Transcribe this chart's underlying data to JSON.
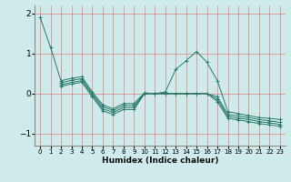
{
  "background_color": "#ceeaea",
  "grid_color": "#e08080",
  "line_color": "#2a7a6a",
  "xlabel": "Humidex (Indice chaleur)",
  "ylim": [
    -1.3,
    2.2
  ],
  "xlim": [
    -0.5,
    23.5
  ],
  "yticks": [
    -1,
    0,
    1,
    2
  ],
  "xticks": [
    0,
    1,
    2,
    3,
    4,
    5,
    6,
    7,
    8,
    9,
    10,
    11,
    12,
    13,
    14,
    15,
    16,
    17,
    18,
    19,
    20,
    21,
    22,
    23
  ],
  "series": [
    [
      1.9,
      1.15,
      0.32,
      0.38,
      0.42,
      0.04,
      -0.28,
      -0.38,
      -0.25,
      -0.25,
      0.02,
      0.0,
      0.04,
      0.6,
      0.82,
      1.05,
      0.78,
      0.32,
      -0.45,
      -0.5,
      -0.55,
      -0.6,
      -0.62,
      -0.65
    ],
    [
      null,
      null,
      0.27,
      0.33,
      0.37,
      0.0,
      -0.33,
      -0.42,
      -0.3,
      -0.3,
      0.0,
      0.0,
      0.0,
      0.0,
      0.0,
      0.0,
      0.0,
      -0.08,
      -0.52,
      -0.56,
      -0.6,
      -0.65,
      -0.68,
      -0.72
    ],
    [
      null,
      null,
      0.22,
      0.28,
      0.32,
      -0.04,
      -0.38,
      -0.47,
      -0.35,
      -0.35,
      0.0,
      0.0,
      0.0,
      0.0,
      0.0,
      0.0,
      0.0,
      -0.14,
      -0.57,
      -0.61,
      -0.65,
      -0.7,
      -0.73,
      -0.77
    ],
    [
      null,
      null,
      0.18,
      0.24,
      0.28,
      -0.08,
      -0.43,
      -0.52,
      -0.4,
      -0.4,
      0.0,
      0.0,
      0.0,
      0.0,
      0.0,
      0.0,
      0.0,
      -0.2,
      -0.62,
      -0.66,
      -0.7,
      -0.75,
      -0.78,
      -0.82
    ]
  ]
}
